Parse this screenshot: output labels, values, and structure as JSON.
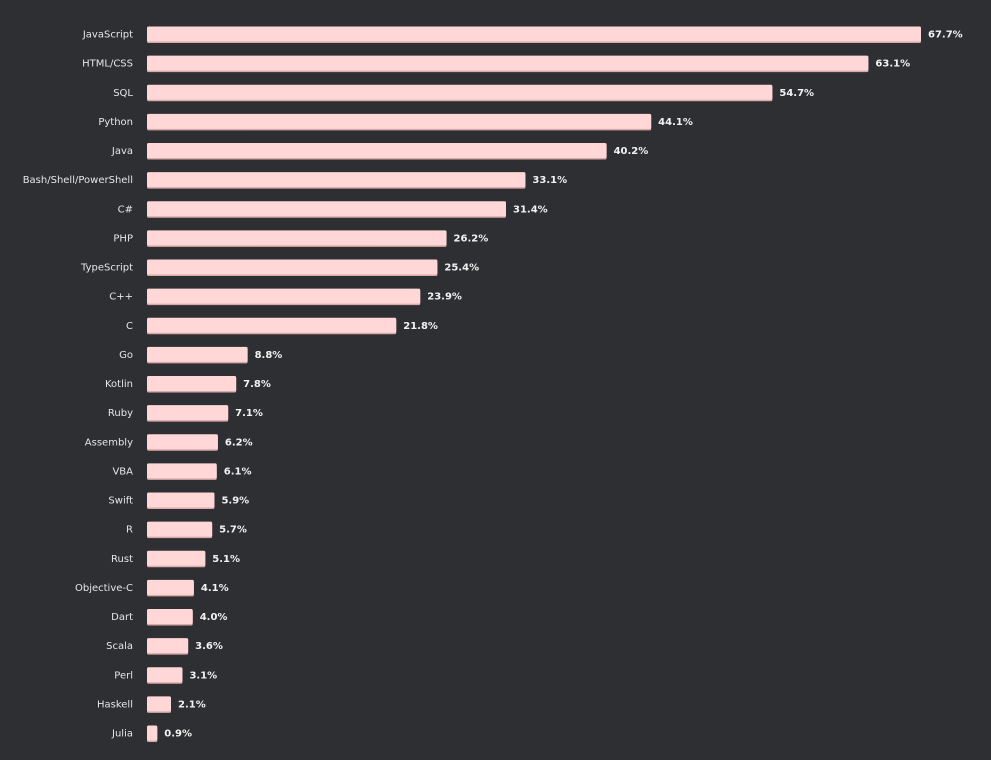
{
  "colors": {
    "background": "#2d2f33",
    "bar_fill": "#ffd7d7",
    "bar_shadow": "#d9a9a9",
    "label_text": "#e6e6e6",
    "value_text": "#f2f2f2"
  },
  "chart_data": {
    "type": "bar",
    "orientation": "horizontal",
    "title": "",
    "xlabel": "",
    "ylabel": "",
    "value_suffix": "%",
    "xlim": [
      0,
      67.7
    ],
    "grid": false,
    "legend": "none",
    "categories": [
      "JavaScript",
      "HTML/CSS",
      "SQL",
      "Python",
      "Java",
      "Bash/Shell/PowerShell",
      "C#",
      "PHP",
      "TypeScript",
      "C++",
      "C",
      "Go",
      "Kotlin",
      "Ruby",
      "Assembly",
      "VBA",
      "Swift",
      "R",
      "Rust",
      "Objective-C",
      "Dart",
      "Scala",
      "Perl",
      "Haskell",
      "Julia"
    ],
    "values": [
      67.7,
      63.1,
      54.7,
      44.1,
      40.2,
      33.1,
      31.4,
      26.2,
      25.4,
      23.9,
      21.8,
      8.8,
      7.8,
      7.1,
      6.2,
      6.1,
      5.9,
      5.7,
      5.1,
      4.1,
      4.0,
      3.6,
      3.1,
      2.1,
      0.9
    ],
    "value_labels": [
      "67.7%",
      "63.1%",
      "54.7%",
      "44.1%",
      "40.2%",
      "33.1%",
      "31.4%",
      "26.2%",
      "25.4%",
      "23.9%",
      "21.8%",
      "8.8%",
      "7.8%",
      "7.1%",
      "6.2%",
      "6.1%",
      "5.9%",
      "5.7%",
      "5.1%",
      "4.1%",
      "4.0%",
      "3.6%",
      "3.1%",
      "2.1%",
      "0.9%"
    ]
  }
}
